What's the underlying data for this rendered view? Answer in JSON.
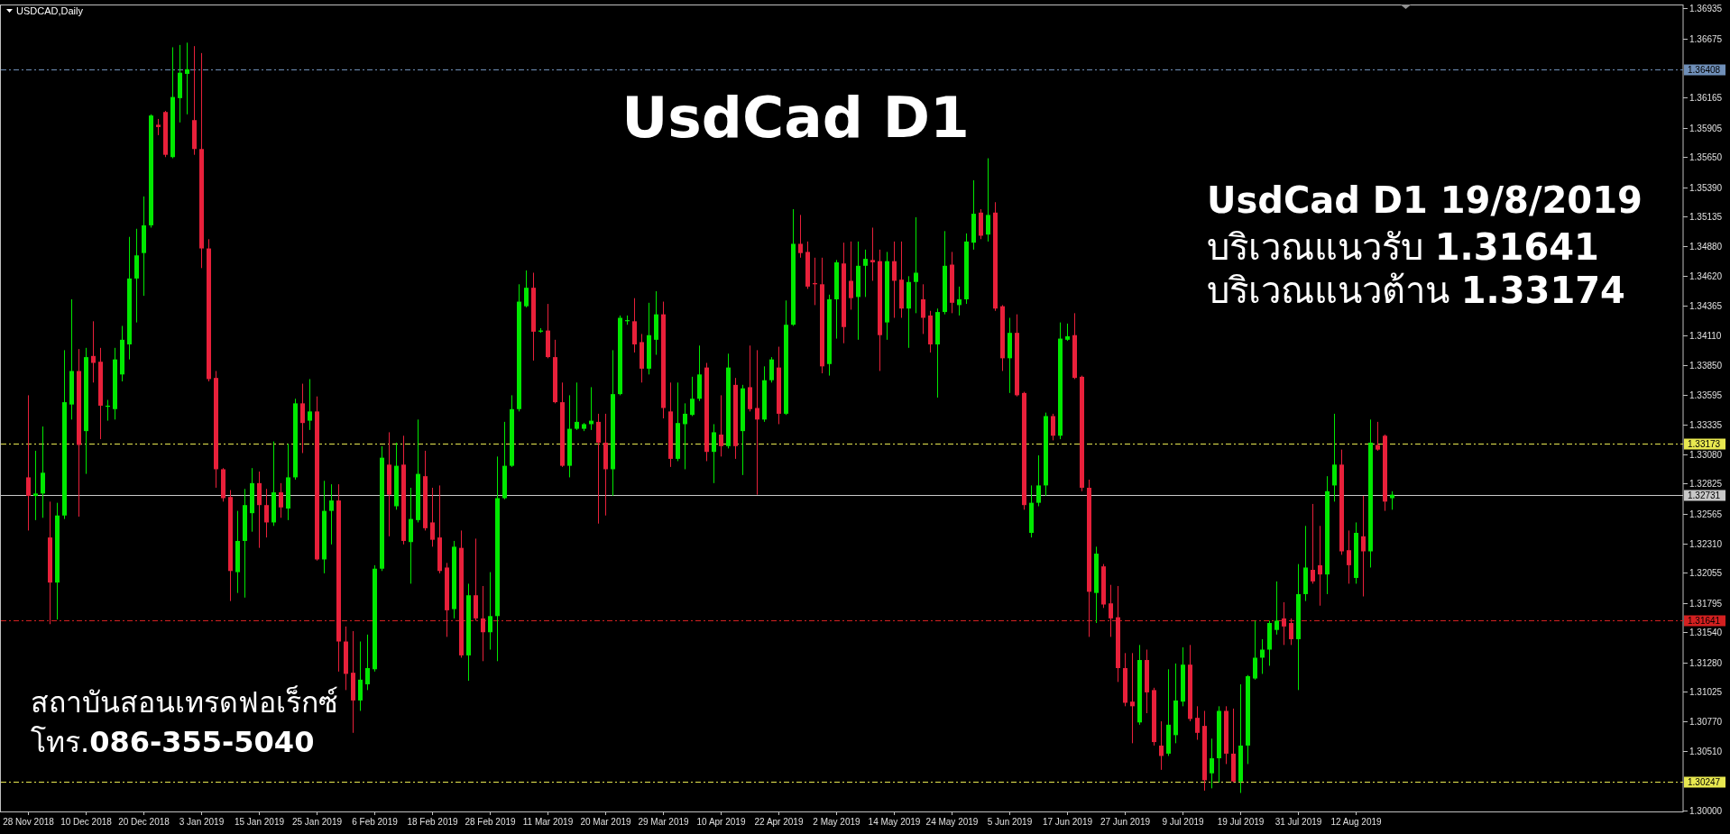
{
  "chart_data": {
    "type": "candlestick",
    "title": "UsdCad D1",
    "subtitle": "UsdCad D1 19/8/2019",
    "annotations": [
      "USDCAD,Daily",
      "บริเวณแนวรับ **1.31641**",
      "บริเวณแนวต้าน **1.33174**",
      "สถาบันสอนเทรดฟอเร็กซ์",
      "โทร.**086-355-5040**"
    ],
    "categories": [
      "28 Nov 2018",
      null,
      null,
      null,
      null,
      null,
      null,
      null,
      "10 Dec 2018",
      null,
      null,
      null,
      null,
      null,
      null,
      null,
      "20 Dec 2018",
      null,
      null,
      null,
      null,
      null,
      null,
      null,
      "3 Jan 2019",
      null,
      null,
      null,
      null,
      null,
      null,
      null,
      "15 Jan 2019",
      null,
      null,
      null,
      null,
      null,
      null,
      null,
      "25 Jan 2019",
      null,
      null,
      null,
      null,
      null,
      null,
      null,
      "6 Feb 2019",
      null,
      null,
      null,
      null,
      null,
      null,
      null,
      "18 Feb 2019",
      null,
      null,
      null,
      null,
      null,
      null,
      null,
      "28 Feb 2019",
      null,
      null,
      null,
      null,
      null,
      null,
      null,
      "11 Mar 2019",
      null,
      null,
      null,
      null,
      null,
      null,
      null,
      "20 Mar 2019",
      null,
      null,
      null,
      null,
      null,
      null,
      null,
      "29 Mar 2019",
      null,
      null,
      null,
      null,
      null,
      null,
      null,
      "10 Apr 2019",
      null,
      null,
      null,
      null,
      null,
      null,
      null,
      "22 Apr 2019",
      null,
      null,
      null,
      null,
      null,
      null,
      null,
      "2 May 2019",
      null,
      null,
      null,
      null,
      null,
      null,
      null,
      "14 May 2019",
      null,
      null,
      null,
      null,
      null,
      null,
      null,
      "24 May 2019",
      null,
      null,
      null,
      null,
      null,
      null,
      null,
      "5 Jun 2019",
      null,
      null,
      null,
      null,
      null,
      null,
      null,
      "17 Jun 2019",
      null,
      null,
      null,
      null,
      null,
      null,
      null,
      "27 Jun 2019",
      null,
      null,
      null,
      null,
      null,
      null,
      null,
      "9 Jul 2019",
      null,
      null,
      null,
      null,
      null,
      null,
      null,
      "19 Jul 2019",
      null,
      null,
      null,
      null,
      null,
      null,
      null,
      "31 Jul 2019",
      null,
      null,
      null,
      null,
      null,
      null,
      null,
      "12 Aug 2019",
      null,
      null,
      null,
      null,
      null,
      null,
      null,
      null,
      null,
      null,
      null,
      null,
      null,
      null,
      null,
      null,
      null,
      null,
      null,
      null,
      null,
      null,
      null,
      null,
      null,
      null,
      null,
      null,
      null,
      null,
      null,
      null,
      null,
      null,
      null,
      null,
      null,
      null,
      null,
      null,
      null,
      null,
      null,
      null,
      null
    ],
    "ohlc": [
      [
        1.3288,
        1.3359,
        1.3242,
        1.3272
      ],
      [
        1.3272,
        1.3311,
        1.3251,
        1.3274
      ],
      [
        1.3274,
        1.3332,
        1.3253,
        1.3292
      ],
      [
        1.3236,
        1.3267,
        1.3161,
        1.3197
      ],
      [
        1.3197,
        1.3266,
        1.3165,
        1.3255
      ],
      [
        1.3255,
        1.3398,
        1.3252,
        1.3353
      ],
      [
        1.3351,
        1.3442,
        1.3338,
        1.338
      ],
      [
        1.338,
        1.3399,
        1.3254,
        1.3316
      ],
      [
        1.3328,
        1.34,
        1.3291,
        1.3392
      ],
      [
        1.3393,
        1.3423,
        1.337,
        1.3387
      ],
      [
        1.3388,
        1.34,
        1.3321,
        1.335
      ],
      [
        1.3349,
        1.3355,
        1.3337,
        1.335
      ],
      [
        1.3347,
        1.34,
        1.3338,
        1.339
      ],
      [
        1.3377,
        1.3419,
        1.3371,
        1.3407
      ],
      [
        1.3403,
        1.3496,
        1.339,
        1.346
      ],
      [
        1.346,
        1.3503,
        1.3422,
        1.348
      ],
      [
        1.3482,
        1.3531,
        1.3445,
        1.3506
      ],
      [
        1.3506,
        1.3602,
        1.3504,
        1.3601
      ],
      [
        1.3593,
        1.3598,
        1.3584,
        1.3591
      ],
      [
        1.3604,
        1.3605,
        1.3565,
        1.3567
      ],
      [
        1.3565,
        1.366,
        1.3564,
        1.3617
      ],
      [
        1.3616,
        1.3662,
        1.3595,
        1.3638
      ],
      [
        1.3637,
        1.3664,
        1.3602,
        1.3641
      ],
      [
        1.3597,
        1.3661,
        1.3567,
        1.3572
      ],
      [
        1.3572,
        1.3655,
        1.3469,
        1.3486
      ],
      [
        1.3486,
        1.3494,
        1.3371,
        1.3373
      ],
      [
        1.3374,
        1.338,
        1.3279,
        1.3295
      ],
      [
        1.3295,
        1.3296,
        1.3267,
        1.327
      ],
      [
        1.3271,
        1.3277,
        1.3181,
        1.3207
      ],
      [
        1.3206,
        1.3259,
        1.3188,
        1.3233
      ],
      [
        1.3233,
        1.3278,
        1.3184,
        1.3264
      ],
      [
        1.3257,
        1.3296,
        1.3241,
        1.3283
      ],
      [
        1.3283,
        1.3293,
        1.3227,
        1.3264
      ],
      [
        1.3264,
        1.3278,
        1.3236,
        1.3249
      ],
      [
        1.3249,
        1.3319,
        1.3246,
        1.3275
      ],
      [
        1.3275,
        1.3283,
        1.3253,
        1.3262
      ],
      [
        1.3261,
        1.3317,
        1.3251,
        1.3288
      ],
      [
        1.3288,
        1.3356,
        1.3286,
        1.3352
      ],
      [
        1.3352,
        1.3369,
        1.3309,
        1.3335
      ],
      [
        1.3337,
        1.3373,
        1.3329,
        1.3345
      ],
      [
        1.3345,
        1.3358,
        1.3216,
        1.3217
      ],
      [
        1.3217,
        1.3285,
        1.3205,
        1.3259
      ],
      [
        1.3259,
        1.3282,
        1.323,
        1.3268
      ],
      [
        1.3268,
        1.3282,
        1.312,
        1.3146
      ],
      [
        1.3146,
        1.3159,
        1.3104,
        1.3118
      ],
      [
        1.3119,
        1.3155,
        1.3067,
        1.3095
      ],
      [
        1.3095,
        1.3146,
        1.3086,
        1.3113
      ],
      [
        1.3109,
        1.3152,
        1.3104,
        1.3123
      ],
      [
        1.3122,
        1.3212,
        1.312,
        1.3209
      ],
      [
        1.3209,
        1.3315,
        1.3207,
        1.3305
      ],
      [
        1.3299,
        1.3327,
        1.3237,
        1.3273
      ],
      [
        1.3263,
        1.3318,
        1.326,
        1.3298
      ],
      [
        1.3299,
        1.3324,
        1.323,
        1.3233
      ],
      [
        1.3232,
        1.3279,
        1.3196,
        1.3252
      ],
      [
        1.3251,
        1.3338,
        1.3249,
        1.3291
      ],
      [
        1.3289,
        1.3311,
        1.3242,
        1.3244
      ],
      [
        1.3249,
        1.3279,
        1.3228,
        1.3234
      ],
      [
        1.3236,
        1.3281,
        1.3205,
        1.3207
      ],
      [
        1.321,
        1.3214,
        1.315,
        1.3173
      ],
      [
        1.3174,
        1.3233,
        1.3166,
        1.3228
      ],
      [
        1.3227,
        1.3242,
        1.3132,
        1.3134
      ],
      [
        1.3134,
        1.3196,
        1.3112,
        1.3186
      ],
      [
        1.3186,
        1.3235,
        1.3164,
        1.3166
      ],
      [
        1.3166,
        1.3194,
        1.3129,
        1.3154
      ],
      [
        1.3154,
        1.3206,
        1.3139,
        1.3168
      ],
      [
        1.3168,
        1.3306,
        1.3129,
        1.327
      ],
      [
        1.327,
        1.3336,
        1.3269,
        1.3298
      ],
      [
        1.3298,
        1.3359,
        1.3297,
        1.3347
      ],
      [
        1.3347,
        1.3455,
        1.3345,
        1.344
      ],
      [
        1.3436,
        1.3467,
        1.3435,
        1.3452
      ],
      [
        1.3452,
        1.3465,
        1.3389,
        1.3414
      ],
      [
        1.3414,
        1.3417,
        1.3413,
        1.3415
      ],
      [
        1.3415,
        1.3438,
        1.3391,
        1.3392
      ],
      [
        1.3392,
        1.3407,
        1.3352,
        1.3353
      ],
      [
        1.3353,
        1.337,
        1.3297,
        1.3298
      ],
      [
        1.3298,
        1.3359,
        1.3288,
        1.333
      ],
      [
        1.333,
        1.337,
        1.3329,
        1.3336
      ],
      [
        1.333,
        1.3335,
        1.3328,
        1.3334
      ],
      [
        1.3334,
        1.3366,
        1.3329,
        1.3337
      ],
      [
        1.3336,
        1.3343,
        1.3248,
        1.3318
      ],
      [
        1.3318,
        1.3343,
        1.3255,
        1.3295
      ],
      [
        1.3295,
        1.3398,
        1.3272,
        1.336
      ],
      [
        1.336,
        1.3428,
        1.3359,
        1.3426
      ],
      [
        1.3423,
        1.3428,
        1.342,
        1.3424
      ],
      [
        1.3423,
        1.3443,
        1.3396,
        1.3403
      ],
      [
        1.3405,
        1.3412,
        1.337,
        1.3382
      ],
      [
        1.3382,
        1.3439,
        1.3377,
        1.3411
      ],
      [
        1.3407,
        1.3449,
        1.3394,
        1.3429
      ],
      [
        1.3429,
        1.344,
        1.3339,
        1.3348
      ],
      [
        1.3345,
        1.337,
        1.3297,
        1.3304
      ],
      [
        1.3304,
        1.337,
        1.3302,
        1.3335
      ],
      [
        1.3334,
        1.3352,
        1.3295,
        1.3343
      ],
      [
        1.3342,
        1.3375,
        1.3341,
        1.3356
      ],
      [
        1.3356,
        1.3402,
        1.3354,
        1.3377
      ],
      [
        1.3383,
        1.3387,
        1.3302,
        1.331
      ],
      [
        1.331,
        1.3334,
        1.3283,
        1.3327
      ],
      [
        1.3325,
        1.3359,
        1.3306,
        1.3315
      ],
      [
        1.3315,
        1.3395,
        1.3313,
        1.3383
      ],
      [
        1.3368,
        1.3374,
        1.3304,
        1.3315
      ],
      [
        1.3328,
        1.3368,
        1.329,
        1.3365
      ],
      [
        1.3366,
        1.3402,
        1.3345,
        1.3347
      ],
      [
        1.3348,
        1.3398,
        1.3273,
        1.3338
      ],
      [
        1.3338,
        1.3384,
        1.3336,
        1.3372
      ],
      [
        1.3372,
        1.3392,
        1.337,
        1.339
      ],
      [
        1.3383,
        1.3401,
        1.3334,
        1.3343
      ],
      [
        1.3343,
        1.3441,
        1.3342,
        1.342
      ],
      [
        1.342,
        1.352,
        1.3419,
        1.349
      ],
      [
        1.349,
        1.3515,
        1.3478,
        1.3482
      ],
      [
        1.3483,
        1.3492,
        1.3451,
        1.3453
      ],
      [
        1.3456,
        1.3478,
        1.3437,
        1.3455
      ],
      [
        1.3455,
        1.3478,
        1.3378,
        1.3384
      ],
      [
        1.3386,
        1.3446,
        1.3376,
        1.3442
      ],
      [
        1.3442,
        1.3476,
        1.3408,
        1.3474
      ],
      [
        1.3473,
        1.3491,
        1.3404,
        1.3418
      ],
      [
        1.3458,
        1.3492,
        1.3433,
        1.3443
      ],
      [
        1.3444,
        1.3492,
        1.3407,
        1.3471
      ],
      [
        1.3471,
        1.3485,
        1.3444,
        1.3477
      ],
      [
        1.3476,
        1.3504,
        1.3458,
        1.3474
      ],
      [
        1.3475,
        1.3485,
        1.338,
        1.3411
      ],
      [
        1.3422,
        1.3483,
        1.3407,
        1.3475
      ],
      [
        1.3475,
        1.3492,
        1.3426,
        1.3458
      ],
      [
        1.3459,
        1.3492,
        1.3426,
        1.3434
      ],
      [
        1.3434,
        1.3462,
        1.34,
        1.3457
      ],
      [
        1.3457,
        1.3513,
        1.343,
        1.3465
      ],
      [
        1.3442,
        1.3455,
        1.3412,
        1.3426
      ],
      [
        1.3428,
        1.3432,
        1.3396,
        1.3403
      ],
      [
        1.3403,
        1.3434,
        1.3357,
        1.3431
      ],
      [
        1.3431,
        1.3501,
        1.3429,
        1.3471
      ],
      [
        1.3472,
        1.3483,
        1.343,
        1.3439
      ],
      [
        1.3437,
        1.3453,
        1.3428,
        1.3442
      ],
      [
        1.3442,
        1.3499,
        1.3438,
        1.3492
      ],
      [
        1.3491,
        1.3545,
        1.3485,
        1.3516
      ],
      [
        1.3517,
        1.352,
        1.3494,
        1.3497
      ],
      [
        1.3498,
        1.3564,
        1.3492,
        1.3515
      ],
      [
        1.3517,
        1.3526,
        1.3432,
        1.3434
      ],
      [
        1.3436,
        1.3437,
        1.338,
        1.3391
      ],
      [
        1.3391,
        1.3426,
        1.3361,
        1.3413
      ],
      [
        1.3413,
        1.3429,
        1.3358,
        1.3359
      ],
      [
        1.3361,
        1.3362,
        1.326,
        1.3264
      ],
      [
        1.324,
        1.3281,
        1.3236,
        1.3266
      ],
      [
        1.3266,
        1.3307,
        1.3263,
        1.3281
      ],
      [
        1.3281,
        1.3344,
        1.3272,
        1.3341
      ],
      [
        1.3341,
        1.3343,
        1.332,
        1.3324
      ],
      [
        1.3324,
        1.3422,
        1.3321,
        1.3408
      ],
      [
        1.3407,
        1.3421,
        1.3406,
        1.341
      ],
      [
        1.3411,
        1.343,
        1.3373,
        1.3374
      ],
      [
        1.3375,
        1.3376,
        1.3276,
        1.3279
      ],
      [
        1.3279,
        1.3286,
        1.315,
        1.3189
      ],
      [
        1.3188,
        1.3228,
        1.3162,
        1.3222
      ],
      [
        1.3211,
        1.3213,
        1.3175,
        1.3178
      ],
      [
        1.3179,
        1.3195,
        1.315,
        1.3166
      ],
      [
        1.3167,
        1.3194,
        1.3111,
        1.3123
      ],
      [
        1.3123,
        1.3136,
        1.309,
        1.3093
      ],
      [
        1.3094,
        1.3136,
        1.3058,
        1.309
      ],
      [
        1.3076,
        1.3143,
        1.3074,
        1.313
      ],
      [
        1.313,
        1.3139,
        1.3084,
        1.3102
      ],
      [
        1.3104,
        1.3106,
        1.3056,
        1.3059
      ],
      [
        1.3056,
        1.3077,
        1.3035,
        1.3047
      ],
      [
        1.3049,
        1.3122,
        1.3047,
        1.3074
      ],
      [
        1.3065,
        1.3127,
        1.3058,
        1.3095
      ],
      [
        1.3094,
        1.3141,
        1.309,
        1.3126
      ],
      [
        1.3126,
        1.3143,
        1.3077,
        1.3079
      ],
      [
        1.308,
        1.309,
        1.3061,
        1.3067
      ],
      [
        1.3073,
        1.3086,
        1.3017,
        1.3026
      ],
      [
        1.3032,
        1.3062,
        1.3019,
        1.3045
      ],
      [
        1.3045,
        1.309,
        1.3024,
        1.3086
      ],
      [
        1.3086,
        1.309,
        1.304,
        1.3049
      ],
      [
        1.3049,
        1.3088,
        1.3024,
        1.3025
      ],
      [
        1.3025,
        1.3109,
        1.3015,
        1.3056
      ],
      [
        1.3056,
        1.3117,
        1.304,
        1.3116
      ],
      [
        1.3114,
        1.3164,
        1.3113,
        1.3132
      ],
      [
        1.3132,
        1.3148,
        1.3118,
        1.3139
      ],
      [
        1.3139,
        1.3164,
        1.3125,
        1.3162
      ],
      [
        1.3156,
        1.3198,
        1.3152,
        1.3164
      ],
      [
        1.3166,
        1.318,
        1.3143,
        1.3159
      ],
      [
        1.3162,
        1.3166,
        1.3143,
        1.3148
      ],
      [
        1.3148,
        1.3213,
        1.3104,
        1.3187
      ],
      [
        1.3187,
        1.3246,
        1.3181,
        1.321
      ],
      [
        1.3208,
        1.3265,
        1.3196,
        1.3198
      ],
      [
        1.3212,
        1.3246,
        1.3177,
        1.3204
      ],
      [
        1.3204,
        1.3289,
        1.3187,
        1.3276
      ],
      [
        1.3281,
        1.3343,
        1.3267,
        1.3299
      ],
      [
        1.3299,
        1.3312,
        1.3221,
        1.3224
      ],
      [
        1.3225,
        1.3242,
        1.3196,
        1.3212
      ],
      [
        1.3201,
        1.3249,
        1.3196,
        1.324
      ],
      [
        1.3237,
        1.3272,
        1.3185,
        1.3224
      ],
      [
        1.3224,
        1.3338,
        1.321,
        1.3318
      ],
      [
        1.3316,
        1.3336,
        1.3311,
        1.3312
      ],
      [
        1.3324,
        1.3325,
        1.3259,
        1.3267
      ],
      [
        1.327,
        1.3276,
        1.326,
        1.3273
      ],
      null,
      null,
      null,
      null,
      null,
      null,
      null,
      null,
      null,
      null,
      null,
      null,
      null,
      null,
      null,
      null,
      null,
      null,
      null,
      null,
      null,
      null,
      null,
      null,
      null,
      null,
      null,
      null,
      null,
      null,
      null,
      null,
      null,
      null,
      null,
      null,
      null,
      null,
      null,
      null
    ],
    "ylim": [
      1.2999,
      1.3697
    ],
    "yticks": [
      {
        "value": 1.36935,
        "label": "1.36935"
      },
      {
        "value": 1.36675,
        "label": "1.36675"
      },
      {
        "value": 1.36165,
        "label": "1.36165"
      },
      {
        "value": 1.35905,
        "label": "1.35905"
      },
      {
        "value": 1.3565,
        "label": "1.35650"
      },
      {
        "value": 1.3539,
        "label": "1.35390"
      },
      {
        "value": 1.35135,
        "label": "1.35135"
      },
      {
        "value": 1.3488,
        "label": "1.34880"
      },
      {
        "value": 1.3462,
        "label": "1.34620"
      },
      {
        "value": 1.34365,
        "label": "1.34365"
      },
      {
        "value": 1.3411,
        "label": "1.34110"
      },
      {
        "value": 1.3385,
        "label": "1.33850"
      },
      {
        "value": 1.33595,
        "label": "1.33595"
      },
      {
        "value": 1.33335,
        "label": "1.33335"
      },
      {
        "value": 1.3308,
        "label": "1.33080"
      },
      {
        "value": 1.32825,
        "label": "1.32825"
      },
      {
        "value": 1.32565,
        "label": "1.32565"
      },
      {
        "value": 1.3231,
        "label": "1.32310"
      },
      {
        "value": 1.32055,
        "label": "1.32055"
      },
      {
        "value": 1.31795,
        "label": "1.31795"
      },
      {
        "value": 1.3154,
        "label": "1.31540"
      },
      {
        "value": 1.3128,
        "label": "1.31280"
      },
      {
        "value": 1.31025,
        "label": "1.31025"
      },
      {
        "value": 1.3077,
        "label": "1.30770"
      },
      {
        "value": 1.3051,
        "label": "1.30510"
      },
      {
        "value": 1.3,
        "label": "1.30000"
      }
    ],
    "ref_lines": [
      {
        "axis": "y",
        "value": 1.36408,
        "label": "1.36408",
        "color": "#6f8fb8",
        "line_style": "dashed"
      },
      {
        "axis": "y",
        "value": 1.33173,
        "label": "1.33173",
        "color": "#e8e850",
        "line_style": "dashed"
      },
      {
        "axis": "y",
        "value": 1.32731,
        "label": "1.32731",
        "color": "#c8c8c8",
        "line_style": "solid"
      },
      {
        "axis": "y",
        "value": 1.31641,
        "label": "1.31641",
        "color": "#d42020",
        "line_style": "dashed"
      },
      {
        "axis": "y",
        "value": 1.30247,
        "label": "1.30247",
        "color": "#e8e850",
        "line_style": "dashed"
      }
    ]
  }
}
